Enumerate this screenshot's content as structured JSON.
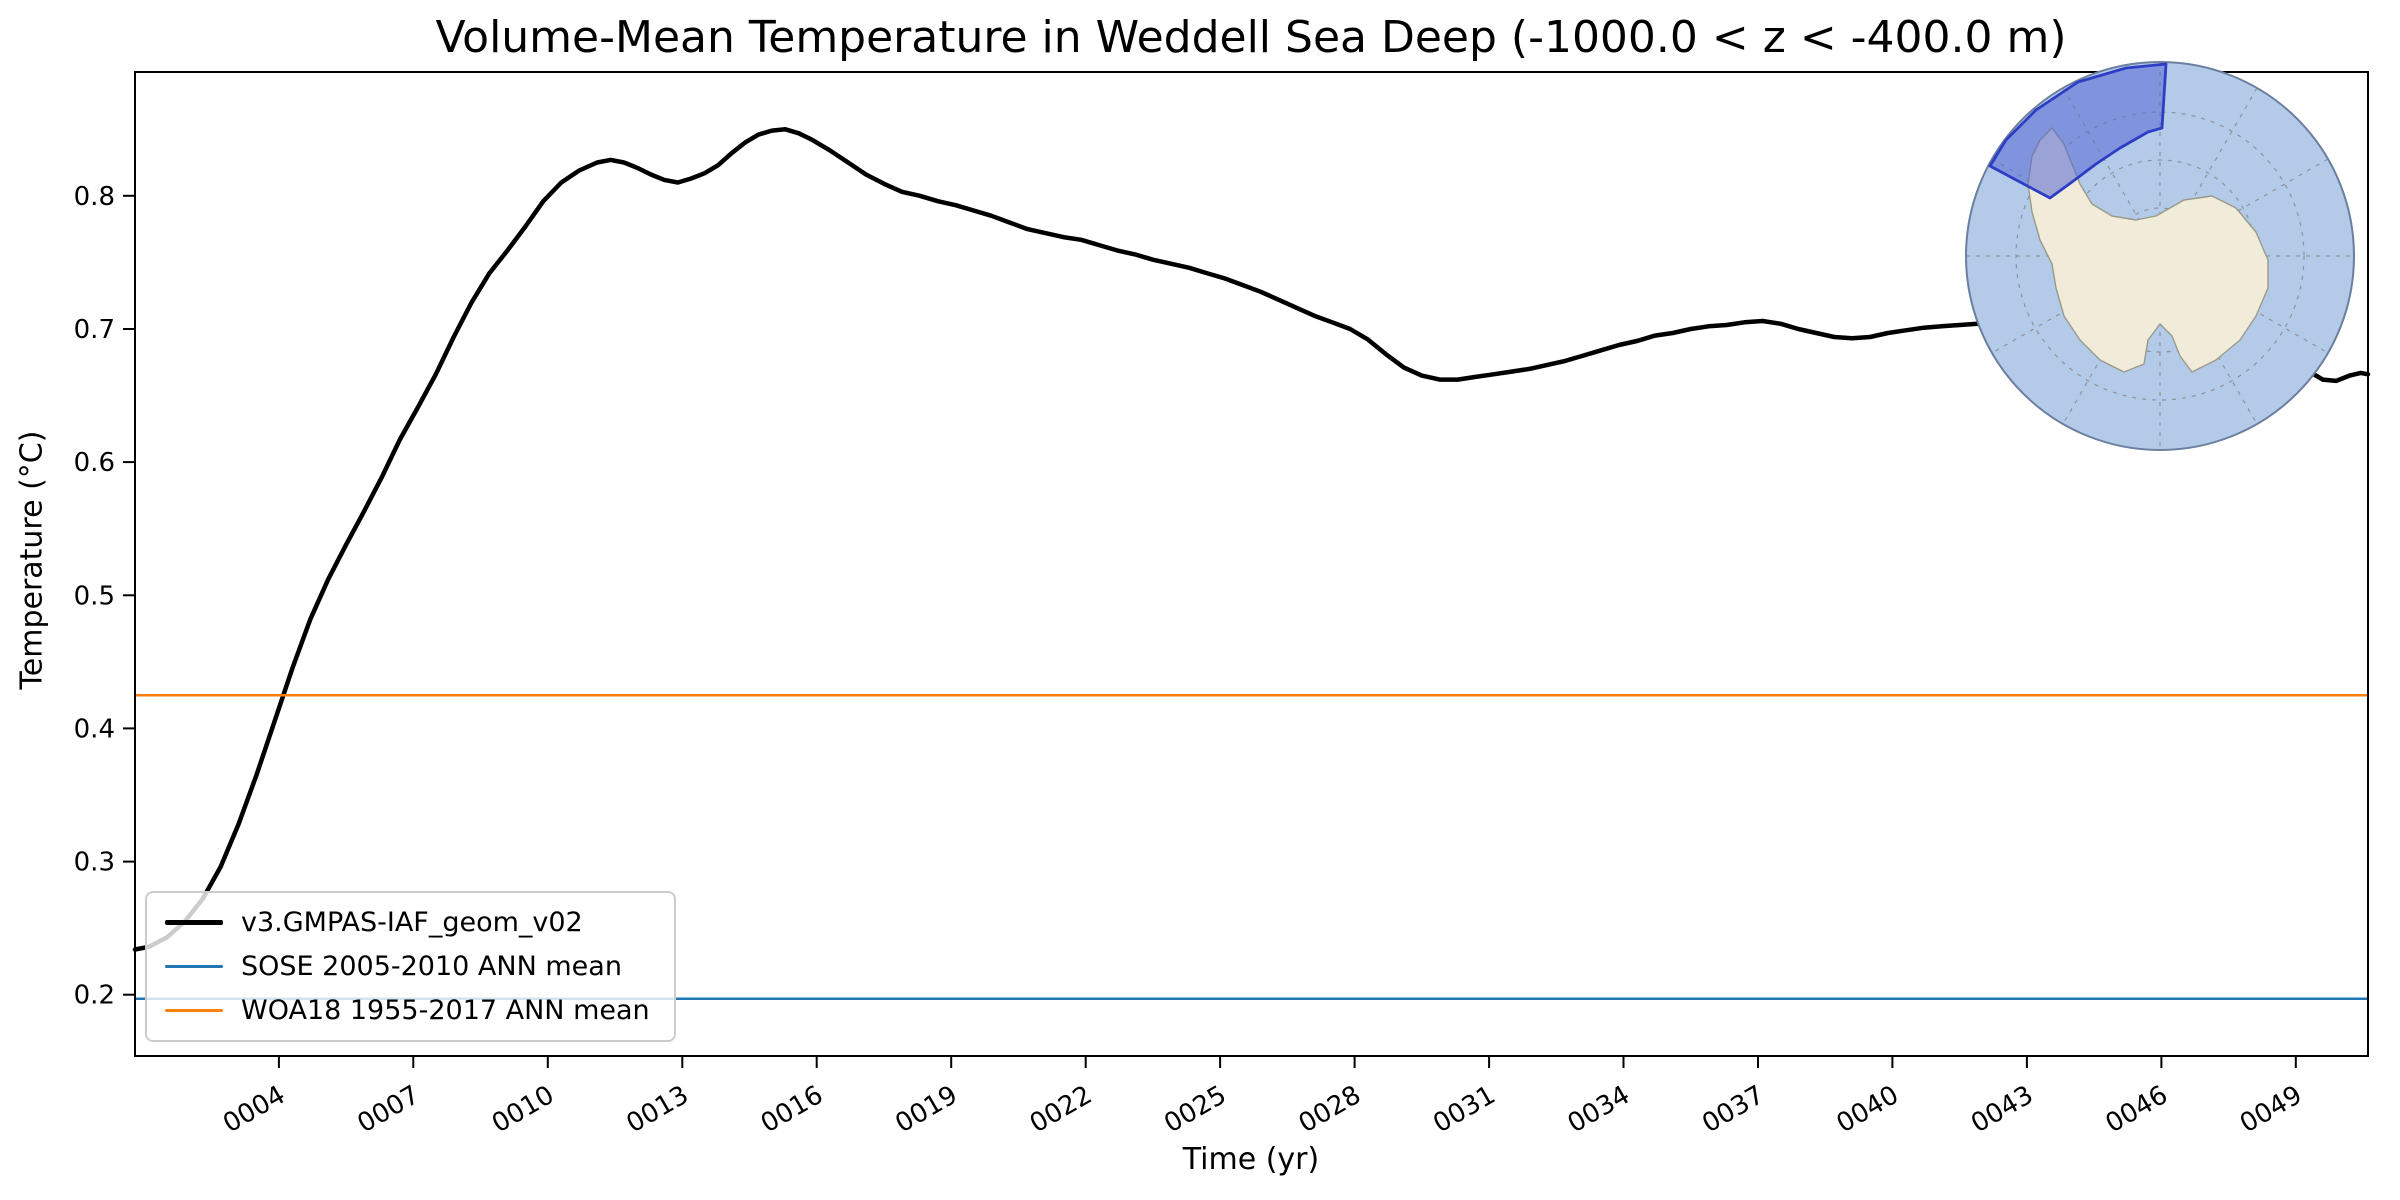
{
  "chart_data": {
    "type": "line",
    "title": "Volume-Mean Temperature in Weddell Sea Deep (-1000.0 < z < -400.0 m)",
    "xlabel": "Time (yr)",
    "ylabel": "Temperature (°C)",
    "xlim": [
      0.79,
      50.61
    ],
    "ylim": [
      0.154,
      0.893
    ],
    "grid": false,
    "legend_position": "lower left",
    "xticks": {
      "values": [
        4,
        7,
        10,
        13,
        16,
        19,
        22,
        25,
        28,
        31,
        34,
        37,
        40,
        43,
        46,
        49
      ],
      "labels": [
        "0004",
        "0007",
        "0010",
        "0013",
        "0016",
        "0019",
        "0022",
        "0025",
        "0028",
        "0031",
        "0034",
        "0037",
        "0040",
        "0043",
        "0046",
        "0049"
      ],
      "rotation_deg": 30
    },
    "yticks": [
      0.2,
      0.3,
      0.4,
      0.5,
      0.6,
      0.7,
      0.8
    ],
    "series": [
      {
        "name": "v3.GMPAS-IAF_geom_v02",
        "type": "line",
        "color": "#000000",
        "linewidth": 4.5,
        "points": [
          [
            0.79,
            0.234
          ],
          [
            1.1,
            0.236
          ],
          [
            1.5,
            0.243
          ],
          [
            1.9,
            0.255
          ],
          [
            2.3,
            0.272
          ],
          [
            2.7,
            0.296
          ],
          [
            3.1,
            0.328
          ],
          [
            3.5,
            0.365
          ],
          [
            3.9,
            0.405
          ],
          [
            4.3,
            0.445
          ],
          [
            4.7,
            0.482
          ],
          [
            5.1,
            0.512
          ],
          [
            5.5,
            0.538
          ],
          [
            5.9,
            0.563
          ],
          [
            6.3,
            0.589
          ],
          [
            6.7,
            0.617
          ],
          [
            7.1,
            0.641
          ],
          [
            7.5,
            0.666
          ],
          [
            7.9,
            0.694
          ],
          [
            8.3,
            0.72
          ],
          [
            8.7,
            0.742
          ],
          [
            9.1,
            0.759
          ],
          [
            9.5,
            0.777
          ],
          [
            9.9,
            0.796
          ],
          [
            10.3,
            0.81
          ],
          [
            10.7,
            0.819
          ],
          [
            11.1,
            0.825
          ],
          [
            11.4,
            0.827
          ],
          [
            11.7,
            0.825
          ],
          [
            12.0,
            0.821
          ],
          [
            12.3,
            0.816
          ],
          [
            12.6,
            0.812
          ],
          [
            12.9,
            0.81
          ],
          [
            13.2,
            0.813
          ],
          [
            13.5,
            0.817
          ],
          [
            13.8,
            0.823
          ],
          [
            14.1,
            0.832
          ],
          [
            14.4,
            0.84
          ],
          [
            14.7,
            0.846
          ],
          [
            15.0,
            0.849
          ],
          [
            15.3,
            0.85
          ],
          [
            15.6,
            0.847
          ],
          [
            15.9,
            0.842
          ],
          [
            16.3,
            0.834
          ],
          [
            16.7,
            0.825
          ],
          [
            17.1,
            0.816
          ],
          [
            17.5,
            0.809
          ],
          [
            17.9,
            0.803
          ],
          [
            18.3,
            0.8
          ],
          [
            18.7,
            0.796
          ],
          [
            19.1,
            0.793
          ],
          [
            19.5,
            0.789
          ],
          [
            19.9,
            0.785
          ],
          [
            20.3,
            0.78
          ],
          [
            20.7,
            0.775
          ],
          [
            21.1,
            0.772
          ],
          [
            21.5,
            0.769
          ],
          [
            21.9,
            0.767
          ],
          [
            22.3,
            0.763
          ],
          [
            22.7,
            0.759
          ],
          [
            23.1,
            0.756
          ],
          [
            23.5,
            0.752
          ],
          [
            23.9,
            0.749
          ],
          [
            24.3,
            0.746
          ],
          [
            24.7,
            0.742
          ],
          [
            25.1,
            0.738
          ],
          [
            25.5,
            0.733
          ],
          [
            25.9,
            0.728
          ],
          [
            26.3,
            0.722
          ],
          [
            26.7,
            0.716
          ],
          [
            27.1,
            0.71
          ],
          [
            27.5,
            0.705
          ],
          [
            27.9,
            0.7
          ],
          [
            28.3,
            0.692
          ],
          [
            28.7,
            0.681
          ],
          [
            29.1,
            0.671
          ],
          [
            29.5,
            0.665
          ],
          [
            29.9,
            0.662
          ],
          [
            30.3,
            0.662
          ],
          [
            30.7,
            0.664
          ],
          [
            31.1,
            0.666
          ],
          [
            31.5,
            0.668
          ],
          [
            31.9,
            0.67
          ],
          [
            32.3,
            0.673
          ],
          [
            32.7,
            0.676
          ],
          [
            33.1,
            0.68
          ],
          [
            33.5,
            0.684
          ],
          [
            33.9,
            0.688
          ],
          [
            34.3,
            0.691
          ],
          [
            34.7,
            0.695
          ],
          [
            35.1,
            0.697
          ],
          [
            35.5,
            0.7
          ],
          [
            35.9,
            0.702
          ],
          [
            36.3,
            0.703
          ],
          [
            36.7,
            0.705
          ],
          [
            37.1,
            0.706
          ],
          [
            37.5,
            0.704
          ],
          [
            37.9,
            0.7
          ],
          [
            38.3,
            0.697
          ],
          [
            38.7,
            0.694
          ],
          [
            39.1,
            0.693
          ],
          [
            39.5,
            0.694
          ],
          [
            39.9,
            0.697
          ],
          [
            40.3,
            0.699
          ],
          [
            40.7,
            0.701
          ],
          [
            41.1,
            0.702
          ],
          [
            41.5,
            0.703
          ],
          [
            41.9,
            0.704
          ],
          [
            42.3,
            0.705
          ],
          [
            42.7,
            0.705
          ],
          [
            43.1,
            0.704
          ],
          [
            43.5,
            0.702
          ],
          [
            43.9,
            0.701
          ],
          [
            44.3,
            0.699
          ],
          [
            44.7,
            0.698
          ],
          [
            45.1,
            0.697
          ],
          [
            45.5,
            0.696
          ],
          [
            45.9,
            0.694
          ],
          [
            46.3,
            0.69
          ],
          [
            46.7,
            0.686
          ],
          [
            47.1,
            0.68
          ],
          [
            47.5,
            0.674
          ],
          [
            47.9,
            0.669
          ],
          [
            48.3,
            0.665
          ],
          [
            48.7,
            0.663
          ],
          [
            49.0,
            0.666
          ],
          [
            49.3,
            0.668
          ],
          [
            49.6,
            0.662
          ],
          [
            49.9,
            0.661
          ],
          [
            50.2,
            0.665
          ],
          [
            50.45,
            0.667
          ],
          [
            50.61,
            0.666
          ]
        ]
      },
      {
        "name": "SOSE 2005-2010 ANN mean",
        "type": "hline",
        "color": "#1f77b4",
        "linewidth": 2.5,
        "value": 0.197
      },
      {
        "name": "WOA18 1955-2017 ANN mean",
        "type": "hline",
        "color": "#ff7f0e",
        "linewidth": 2.5,
        "value": 0.425
      }
    ]
  },
  "inset_map": {
    "description": "antarctic-polar-stereographic-inset",
    "ocean_color": "#b3cbe8",
    "land_color": "#f1ecd9",
    "coast_color": "#9a9a8a",
    "graticule_color": "#808080",
    "region_color": "#5468d4",
    "region_border_color": "#2e3ec4",
    "rim_color": "#6b7f9e"
  }
}
